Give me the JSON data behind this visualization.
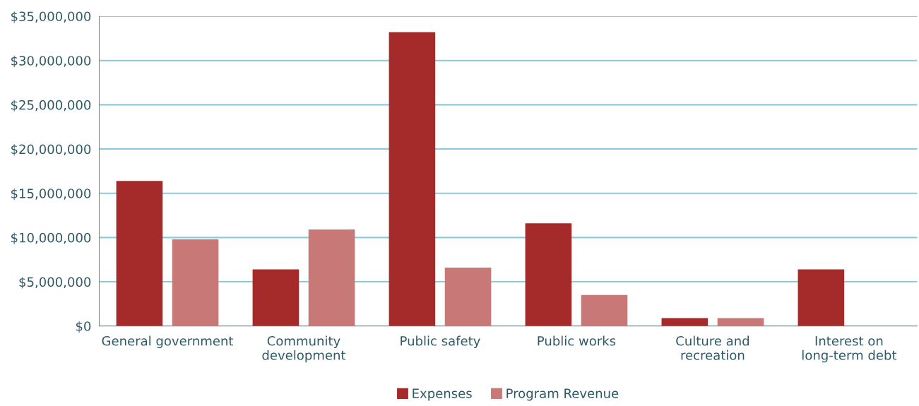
{
  "chart_data": {
    "type": "bar",
    "categories": [
      "General government",
      "Community\ndevelopment",
      "Public safety",
      "Public works",
      "Culture and\nrecreation",
      "Interest on\nlong-term debt"
    ],
    "series": [
      {
        "name": "Expenses",
        "color": "#a52a2a",
        "values": [
          16400000,
          6400000,
          33200000,
          11600000,
          900000,
          6400000
        ]
      },
      {
        "name": "Program Revenue",
        "color": "#c97878",
        "values": [
          9800000,
          10900000,
          6600000,
          3500000,
          900000,
          0
        ]
      }
    ],
    "ylim": [
      0,
      35000000
    ],
    "yticks": [
      {
        "value": 0,
        "label": "$0"
      },
      {
        "value": 5000000,
        "label": "$5,000,000"
      },
      {
        "value": 10000000,
        "label": "$10,000,000"
      },
      {
        "value": 15000000,
        "label": "$15,000,000"
      },
      {
        "value": 20000000,
        "label": "$20,000,000"
      },
      {
        "value": 25000000,
        "label": "$25,000,000"
      },
      {
        "value": 30000000,
        "label": "$30,000,000"
      },
      {
        "value": 35000000,
        "label": "$35,000,000"
      }
    ],
    "grid": "y",
    "legend": "bottom"
  }
}
